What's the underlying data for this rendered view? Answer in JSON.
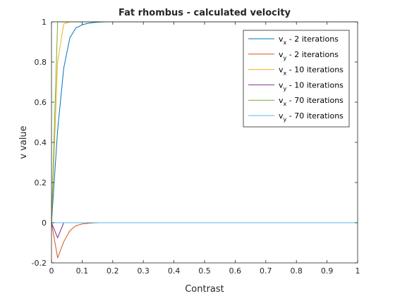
{
  "chart_data": {
    "type": "line",
    "title": "Fat rhombus - calculated velocity",
    "xlabel": "Contrast",
    "ylabel": "v value",
    "xlim": [
      0,
      1
    ],
    "ylim": [
      -0.2,
      1
    ],
    "xticks": [
      0,
      0.1,
      0.2,
      0.3,
      0.4,
      0.5,
      0.6,
      0.7,
      0.8,
      0.9,
      1
    ],
    "xtick_labels": [
      "0",
      "0.1",
      "0.2",
      "0.3",
      "0.4",
      "0.5",
      "0.6",
      "0.7",
      "0.8",
      "0.9",
      "1"
    ],
    "yticks": [
      -0.2,
      0,
      0.2,
      0.4,
      0.6,
      0.8,
      1
    ],
    "ytick_labels": [
      "-0.2",
      "0",
      "0.2",
      "0.4",
      "0.6",
      "0.8",
      "1"
    ],
    "grid": false,
    "legend_position": "top-right",
    "x": [
      0,
      0.02,
      0.04,
      0.06,
      0.08,
      0.1,
      0.12,
      0.14,
      0.16,
      0.18,
      0.2,
      0.25,
      0.3,
      0.4,
      0.5,
      0.6,
      0.7,
      0.8,
      0.9,
      1.0
    ],
    "series": [
      {
        "name_main": "v",
        "name_sub": "x",
        "name_rest": " - 2 iterations",
        "color": "#0072BD",
        "values": [
          0,
          0.46,
          0.77,
          0.92,
          0.97,
          0.985,
          0.993,
          0.997,
          0.999,
          1,
          1,
          1,
          1,
          1,
          1,
          1,
          1,
          1,
          1,
          1
        ]
      },
      {
        "name_main": "v",
        "name_sub": "y",
        "name_rest": " - 2 iterations",
        "color": "#D95319",
        "values": [
          0,
          -0.175,
          -0.095,
          -0.04,
          -0.015,
          -0.006,
          -0.003,
          -0.001,
          0,
          0,
          0,
          0,
          0,
          0,
          0,
          0,
          0,
          0,
          0,
          0
        ]
      },
      {
        "name_main": "v",
        "name_sub": "x",
        "name_rest": " - 10 iterations",
        "color": "#EDB120",
        "values": [
          0,
          0.8,
          0.99,
          1,
          1,
          1,
          1,
          1,
          1,
          1,
          1,
          1,
          1,
          1,
          1,
          1,
          1,
          1,
          1,
          1
        ]
      },
      {
        "name_main": "v",
        "name_sub": "y",
        "name_rest": " - 10 iterations",
        "color": "#7E2F8E",
        "values": [
          0,
          -0.075,
          0,
          0,
          0,
          0,
          0,
          0,
          0,
          0,
          0,
          0,
          0,
          0,
          0,
          0,
          0,
          0,
          0,
          0
        ]
      },
      {
        "name_main": "v",
        "name_sub": "x",
        "name_rest": " - 70 iterations",
        "color": "#77AC30",
        "values": [
          0,
          1,
          1,
          1,
          1,
          1,
          1,
          1,
          1,
          1,
          1,
          1,
          1,
          1,
          1,
          1,
          1,
          1,
          1,
          1
        ]
      },
      {
        "name_main": "v",
        "name_sub": "y",
        "name_rest": " - 70 iterations",
        "color": "#4DBEEE",
        "values": [
          0,
          0,
          0,
          0,
          0,
          0,
          0,
          0,
          0,
          0,
          0,
          0,
          0,
          0,
          0,
          0,
          0,
          0,
          0,
          0
        ]
      }
    ]
  }
}
